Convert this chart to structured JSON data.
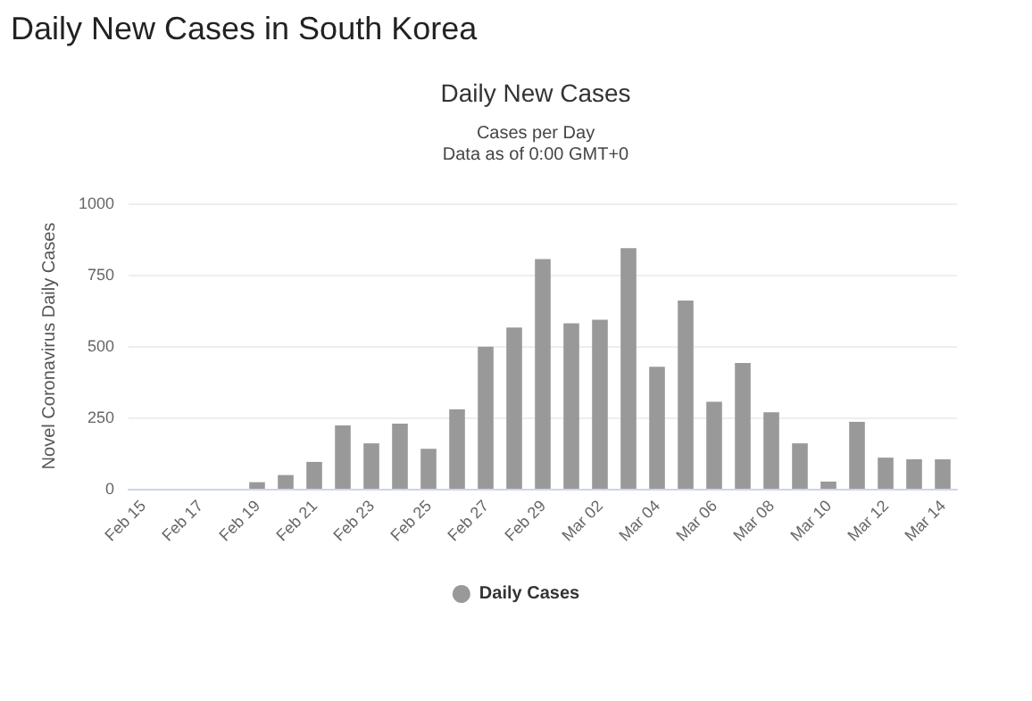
{
  "chart_data": {
    "type": "bar",
    "title": "Daily New Cases in South Korea",
    "subtitle": "Daily New Cases",
    "annotations": [
      "Cases per Day",
      "Data as of 0:00 GMT+0"
    ],
    "ylabel": "Novel Coronavirus Daily Cases",
    "categories": [
      "Feb 15",
      null,
      "Feb 17",
      null,
      "Feb 19",
      null,
      "Feb 21",
      null,
      "Feb 23",
      null,
      "Feb 25",
      null,
      "Feb 27",
      null,
      "Feb 29",
      null,
      "Mar 02",
      null,
      "Mar 04",
      null,
      "Mar 06",
      null,
      "Mar 08",
      null,
      "Mar 10",
      null,
      "Mar 12",
      null,
      "Mar 14"
    ],
    "series": [
      {
        "name": "Daily Cases",
        "color": "#999999",
        "values": [
          0,
          0,
          0,
          0,
          23,
          48,
          94,
          222,
          159,
          228,
          140,
          278,
          498,
          565,
          805,
          580,
          592,
          843,
          427,
          659,
          305,
          441,
          268,
          159,
          25,
          234,
          109,
          103,
          103
        ]
      }
    ],
    "ylim": [
      0,
      1000
    ],
    "yticks": [
      0,
      250,
      500,
      750,
      1000
    ],
    "grid": "y",
    "legend": "bottom"
  }
}
